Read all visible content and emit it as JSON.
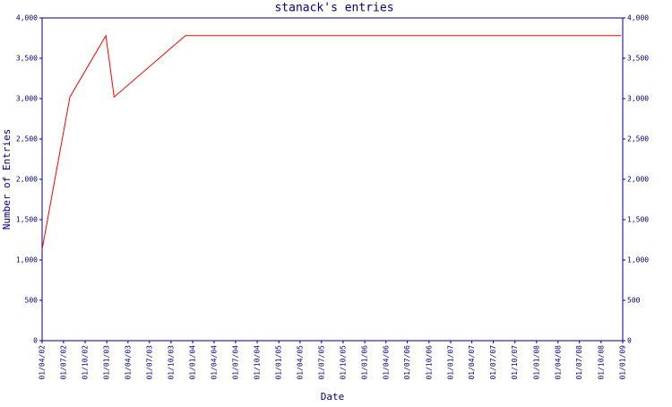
{
  "chart_data": {
    "type": "line",
    "title": "stanack's entries",
    "x_label": "Date",
    "y_label": "Number of Entries",
    "x": [
      "2002-04-01",
      "2002-07-28",
      "2002-12-28",
      "2003-02-01",
      "2003-12-01",
      "2008-12-25"
    ],
    "series": [
      {
        "name": "entries",
        "color": "#ff0000",
        "values": [
          1130,
          3020,
          3780,
          3020,
          3780,
          3780
        ]
      }
    ],
    "xlim": [
      "2002-04-01",
      "2009-01-01"
    ],
    "xticks": [
      {
        "value": "2002-04-01",
        "label": "01/04/02"
      },
      {
        "value": "2002-07-01",
        "label": "01/07/02"
      },
      {
        "value": "2002-10-01",
        "label": "01/10/02"
      },
      {
        "value": "2003-01-01",
        "label": "01/01/03"
      },
      {
        "value": "2003-04-01",
        "label": "01/04/03"
      },
      {
        "value": "2003-07-01",
        "label": "01/07/03"
      },
      {
        "value": "2003-10-01",
        "label": "01/10/03"
      },
      {
        "value": "2004-01-01",
        "label": "01/01/04"
      },
      {
        "value": "2004-04-01",
        "label": "01/04/04"
      },
      {
        "value": "2004-07-01",
        "label": "01/07/04"
      },
      {
        "value": "2004-10-01",
        "label": "01/10/04"
      },
      {
        "value": "2005-01-01",
        "label": "01/01/05"
      },
      {
        "value": "2005-04-01",
        "label": "01/04/05"
      },
      {
        "value": "2005-07-01",
        "label": "01/07/05"
      },
      {
        "value": "2005-10-01",
        "label": "01/10/05"
      },
      {
        "value": "2006-01-01",
        "label": "01/01/06"
      },
      {
        "value": "2006-04-01",
        "label": "01/04/06"
      },
      {
        "value": "2006-07-01",
        "label": "01/07/06"
      },
      {
        "value": "2006-10-01",
        "label": "01/10/06"
      },
      {
        "value": "2007-01-01",
        "label": "01/01/07"
      },
      {
        "value": "2007-04-01",
        "label": "01/04/07"
      },
      {
        "value": "2007-07-01",
        "label": "01/07/07"
      },
      {
        "value": "2007-10-01",
        "label": "01/10/07"
      },
      {
        "value": "2008-01-01",
        "label": "01/01/08"
      },
      {
        "value": "2008-04-01",
        "label": "01/04/08"
      },
      {
        "value": "2008-07-01",
        "label": "01/07/08"
      },
      {
        "value": "2008-10-01",
        "label": "01/10/08"
      },
      {
        "value": "2009-01-01",
        "label": "01/01/09"
      }
    ],
    "ylim": [
      0,
      4000
    ],
    "yticks": [
      0,
      500,
      {
        "value": 1000,
        "label": "1,000"
      },
      {
        "value": 1500,
        "label": "1,500"
      },
      {
        "value": 2000,
        "label": "2,000"
      },
      {
        "value": 2500,
        "label": "2,500"
      },
      {
        "value": 3000,
        "label": "3,000"
      },
      {
        "value": 3500,
        "label": "3,500"
      },
      {
        "value": 4000,
        "label": "4,000"
      }
    ],
    "right_axis": true,
    "axis_color": "#000080"
  }
}
